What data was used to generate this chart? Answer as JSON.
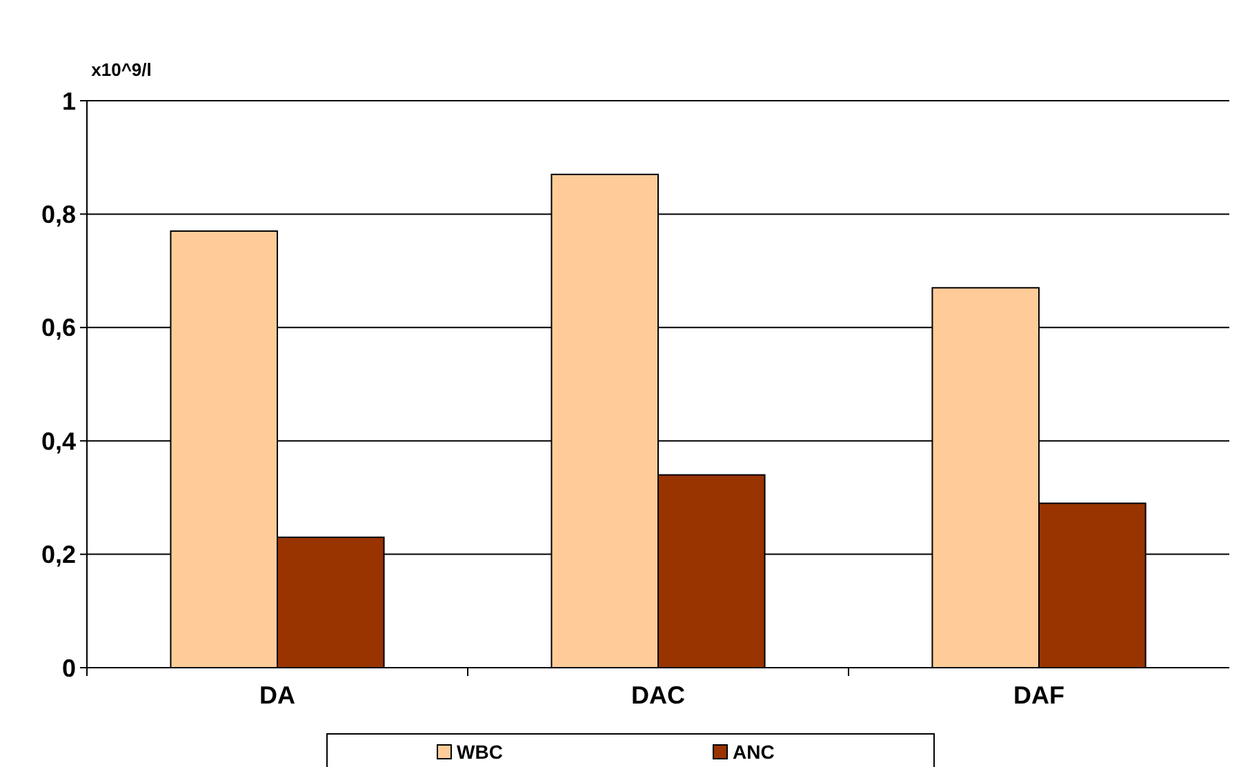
{
  "chart_data": {
    "type": "bar",
    "ylabel": "x10^9/l",
    "categories": [
      "DA",
      "DAC",
      "DAF"
    ],
    "series": [
      {
        "name": "WBC",
        "color": "#ffcc99",
        "values": [
          0.77,
          0.87,
          0.67
        ]
      },
      {
        "name": "ANC",
        "color": "#993300",
        "values": [
          0.23,
          0.34,
          0.29
        ]
      }
    ],
    "ylim": [
      0,
      1
    ],
    "yticks": [
      0,
      {
        "value": 0.2,
        "label": "0,2"
      },
      {
        "value": 0.4,
        "label": "0,4"
      },
      {
        "value": 0.6,
        "label": "0,6"
      },
      {
        "value": 0.8,
        "label": "0,8"
      },
      1
    ],
    "grid": "y",
    "legend": "bottom"
  }
}
